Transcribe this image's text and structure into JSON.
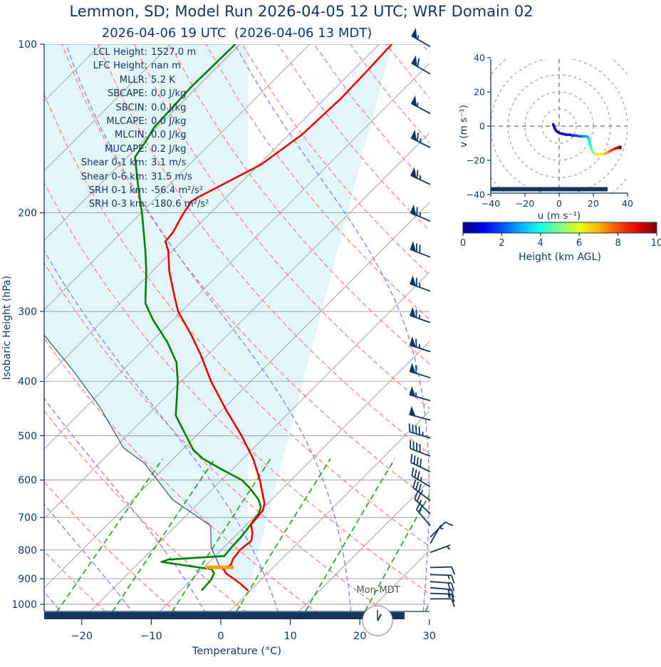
{
  "title": "Lemmon, SD; Model Run 2026-04-05 12 UTC; WRF Domain 02",
  "subtitle": "2026-04-06 19 UTC  (2026-04-06 13 MDT)",
  "stats": [
    {
      "label": "LCL Height:",
      "value": "1527.0 m"
    },
    {
      "label": "LFC Height:",
      "value": "nan m"
    },
    {
      "label": "MLLR:",
      "value": "5.2 K"
    },
    {
      "label": "SBCAPE:",
      "value": "0.0 J/kg"
    },
    {
      "label": "SBCIN:",
      "value": "0.0 J/kg"
    },
    {
      "label": "MLCAPE:",
      "value": "0.0 J/kg"
    },
    {
      "label": "MLCIN:",
      "value": "0.0 J/kg"
    },
    {
      "label": "MUCAPE:",
      "value": "0.2 J/kg"
    },
    {
      "label": "Shear 0-1 km:",
      "value": "3.1 m/s"
    },
    {
      "label": "Shear 0-6 km:",
      "value": "31.5 m/s"
    },
    {
      "label": "SRH 0-1 km:",
      "value": "-56.4 m²/s²"
    },
    {
      "label": "SRH 0-3 km:",
      "value": "-180.6 m²/s²"
    }
  ],
  "clock": {
    "label": "Mon-MDT",
    "hour": 13,
    "minute": 0
  },
  "colors": {
    "navy": "#14355f",
    "temperature": "#e60000",
    "dewpoint": "#007f00",
    "parcel": "#14355f",
    "dry_adiabat": "#f87c7c",
    "moist_adiabat": "#8282e8",
    "mixing_ratio": "#2f9e2f",
    "isotherm": "#9a9a9a",
    "gridline": "#9a9a9a",
    "shade": "#e2f6f9",
    "lcl_bar": "#ffa10a",
    "clock_ring": "#999999",
    "end_marker": "#8b0000"
  },
  "chart_data": [
    {
      "type": "line",
      "id": "skewt",
      "xlabel": "Temperature (°C)",
      "ylabel": "Isobaric Height (hPa)",
      "x_ticks": [
        -20,
        -10,
        0,
        10,
        20,
        30
      ],
      "p_ticks": [
        100,
        200,
        300,
        400,
        500,
        600,
        700,
        800,
        900,
        1000
      ],
      "xlim": [
        -25.4,
        30
      ],
      "plim": [
        100,
        1105
      ],
      "isotherms": [
        -110,
        -100,
        -90,
        -80,
        -70,
        -60,
        -50,
        -40,
        -30,
        -20,
        -10,
        0,
        10,
        20,
        30
      ],
      "dry_adiabats": [
        -30,
        -20,
        -10,
        0,
        10,
        20,
        30,
        40,
        50,
        60,
        70,
        80,
        90,
        100,
        110,
        120,
        130,
        140,
        150
      ],
      "moist_adiabats": [
        -60,
        -50,
        -40,
        -30,
        -20,
        -10,
        0,
        10,
        20,
        30
      ],
      "mixing_ratios": [
        0.5,
        1,
        2,
        4,
        8,
        14,
        24
      ],
      "temperature_profile": [
        [
          100,
          -58.2
        ],
        [
          112,
          -57.9
        ],
        [
          125,
          -57.7
        ],
        [
          145,
          -58.1
        ],
        [
          164,
          -59.7
        ],
        [
          188,
          -64.1
        ],
        [
          191,
          -64.4
        ],
        [
          201,
          -63.8
        ],
        [
          217,
          -62.6
        ],
        [
          225,
          -62.4
        ],
        [
          234,
          -60.6
        ],
        [
          254,
          -57.6
        ],
        [
          280,
          -53.5
        ],
        [
          300,
          -50.5
        ],
        [
          330,
          -45.3
        ],
        [
          360,
          -40.8
        ],
        [
          400,
          -35.7
        ],
        [
          450,
          -29.4
        ],
        [
          500,
          -23.5
        ],
        [
          550,
          -18.5
        ],
        [
          600,
          -14.5
        ],
        [
          640,
          -11.8
        ],
        [
          660,
          -10.5
        ],
        [
          680,
          -9.7
        ],
        [
          700,
          -9.5
        ],
        [
          720,
          -9.4
        ],
        [
          745,
          -8.0
        ],
        [
          770,
          -7.0
        ],
        [
          800,
          -7.3
        ],
        [
          830,
          -7.0
        ],
        [
          850,
          -6.5
        ],
        [
          865,
          -6.9
        ],
        [
          880,
          -6.0
        ],
        [
          900,
          -4.1
        ],
        [
          920,
          -2.3
        ],
        [
          935,
          -1.1
        ],
        [
          945,
          -0.3
        ]
      ],
      "dewpoint_profile": [
        [
          100,
          -80.7
        ],
        [
          119,
          -80.9
        ],
        [
          141,
          -80.4
        ],
        [
          148,
          -79.7
        ],
        [
          159,
          -78.9
        ],
        [
          180,
          -74.1
        ],
        [
          202,
          -69.5
        ],
        [
          234,
          -63.9
        ],
        [
          254,
          -60.9
        ],
        [
          290,
          -56.4
        ],
        [
          310,
          -53.0
        ],
        [
          340,
          -47.7
        ],
        [
          370,
          -43.4
        ],
        [
          400,
          -40.5
        ],
        [
          430,
          -38.1
        ],
        [
          460,
          -35.9
        ],
        [
          500,
          -31.5
        ],
        [
          530,
          -28.4
        ],
        [
          550,
          -25.7
        ],
        [
          575,
          -21.4
        ],
        [
          600,
          -17.1
        ],
        [
          620,
          -14.8
        ],
        [
          650,
          -11.9
        ],
        [
          670,
          -10.5
        ],
        [
          690,
          -9.8
        ],
        [
          710,
          -9.6
        ],
        [
          730,
          -9.3
        ],
        [
          760,
          -9.0
        ],
        [
          790,
          -8.9
        ],
        [
          820,
          -8.7
        ],
        [
          832,
          -16.2
        ],
        [
          840,
          -16.9
        ],
        [
          866,
          -8.6
        ],
        [
          880,
          -7.7
        ],
        [
          903,
          -7.2
        ],
        [
          945,
          -7.0
        ]
      ],
      "parcel_profile": [
        [
          945,
          -0.3
        ],
        [
          859,
          -7.7
        ],
        [
          790,
          -11.9
        ],
        [
          724,
          -15.0
        ],
        [
          650,
          -24.3
        ],
        [
          560,
          -33.5
        ],
        [
          526,
          -38.7
        ],
        [
          443,
          -48.2
        ],
        [
          382,
          -57.2
        ],
        [
          331,
          -66.3
        ]
      ],
      "lcl_marker": {
        "p": 859,
        "t": -7.7,
        "halfwidth_c": 2
      },
      "wind_barbs": [
        [
          101,
          55,
          300
        ],
        [
          113,
          60,
          300
        ],
        [
          133,
          55,
          298
        ],
        [
          153,
          65,
          297
        ],
        [
          178,
          65,
          295
        ],
        [
          207,
          65,
          293
        ],
        [
          240,
          70,
          291
        ],
        [
          276,
          65,
          290
        ],
        [
          314,
          65,
          289
        ],
        [
          354,
          65,
          288
        ],
        [
          394,
          60,
          287
        ],
        [
          433,
          55,
          286
        ],
        [
          469,
          50,
          285
        ],
        [
          505,
          45,
          287
        ],
        [
          544,
          40,
          291
        ],
        [
          580,
          40,
          296
        ],
        [
          617,
          35,
          301
        ],
        [
          653,
          35,
          307
        ],
        [
          689,
          25,
          313
        ],
        [
          724,
          20,
          320
        ],
        [
          759,
          8,
          45
        ],
        [
          779,
          5,
          30
        ],
        [
          808,
          5,
          70
        ],
        [
          860,
          10,
          88
        ],
        [
          885,
          15,
          92
        ],
        [
          911,
          20,
          94
        ],
        [
          934,
          20,
          95
        ],
        [
          956,
          15,
          92
        ],
        [
          978,
          12,
          90
        ]
      ]
    },
    {
      "type": "line",
      "id": "hodograph",
      "xlabel": "u (m s⁻¹)",
      "ylabel": "v (m s⁻¹)",
      "u_ticks": [
        -40,
        -20,
        0,
        20,
        40
      ],
      "v_ticks": [
        -40,
        -20,
        0,
        20,
        40
      ],
      "ulim": [
        -40,
        40
      ],
      "vlim": [
        -40,
        40
      ],
      "rings": [
        10,
        20,
        30,
        40,
        50
      ],
      "trace_uvh": [
        [
          -3.5,
          1,
          0
        ],
        [
          -3,
          0,
          0.1
        ],
        [
          -2.5,
          -1.5,
          0.25
        ],
        [
          -1.5,
          -3,
          0.4
        ],
        [
          0,
          -4,
          0.55
        ],
        [
          2,
          -4.5,
          0.75
        ],
        [
          4,
          -5,
          1.0
        ],
        [
          6,
          -5,
          1.25
        ],
        [
          8,
          -5.5,
          1.5
        ],
        [
          10,
          -5.5,
          1.8
        ],
        [
          12,
          -6,
          2.1
        ],
        [
          14,
          -6,
          2.4
        ],
        [
          16,
          -6,
          2.7
        ],
        [
          17,
          -6.5,
          3.0
        ],
        [
          17.5,
          -8,
          3.3
        ],
        [
          18,
          -10,
          3.7
        ],
        [
          18.5,
          -12,
          4.1
        ],
        [
          19,
          -13.5,
          4.5
        ],
        [
          19.5,
          -15,
          4.9
        ],
        [
          21,
          -16,
          5.3
        ],
        [
          23,
          -16.5,
          5.8
        ],
        [
          25,
          -16.5,
          6.3
        ],
        [
          27,
          -16,
          6.9
        ],
        [
          29,
          -15,
          7.4
        ],
        [
          31,
          -14,
          8.0
        ],
        [
          33,
          -13,
          8.6
        ],
        [
          34.5,
          -12.5,
          9.3
        ],
        [
          35.5,
          -12.5,
          10
        ]
      ],
      "colorbar": {
        "label": "Height (km AGL)",
        "ticks": [
          0,
          2,
          4,
          6,
          8,
          10
        ],
        "range": [
          0,
          10
        ]
      }
    }
  ]
}
